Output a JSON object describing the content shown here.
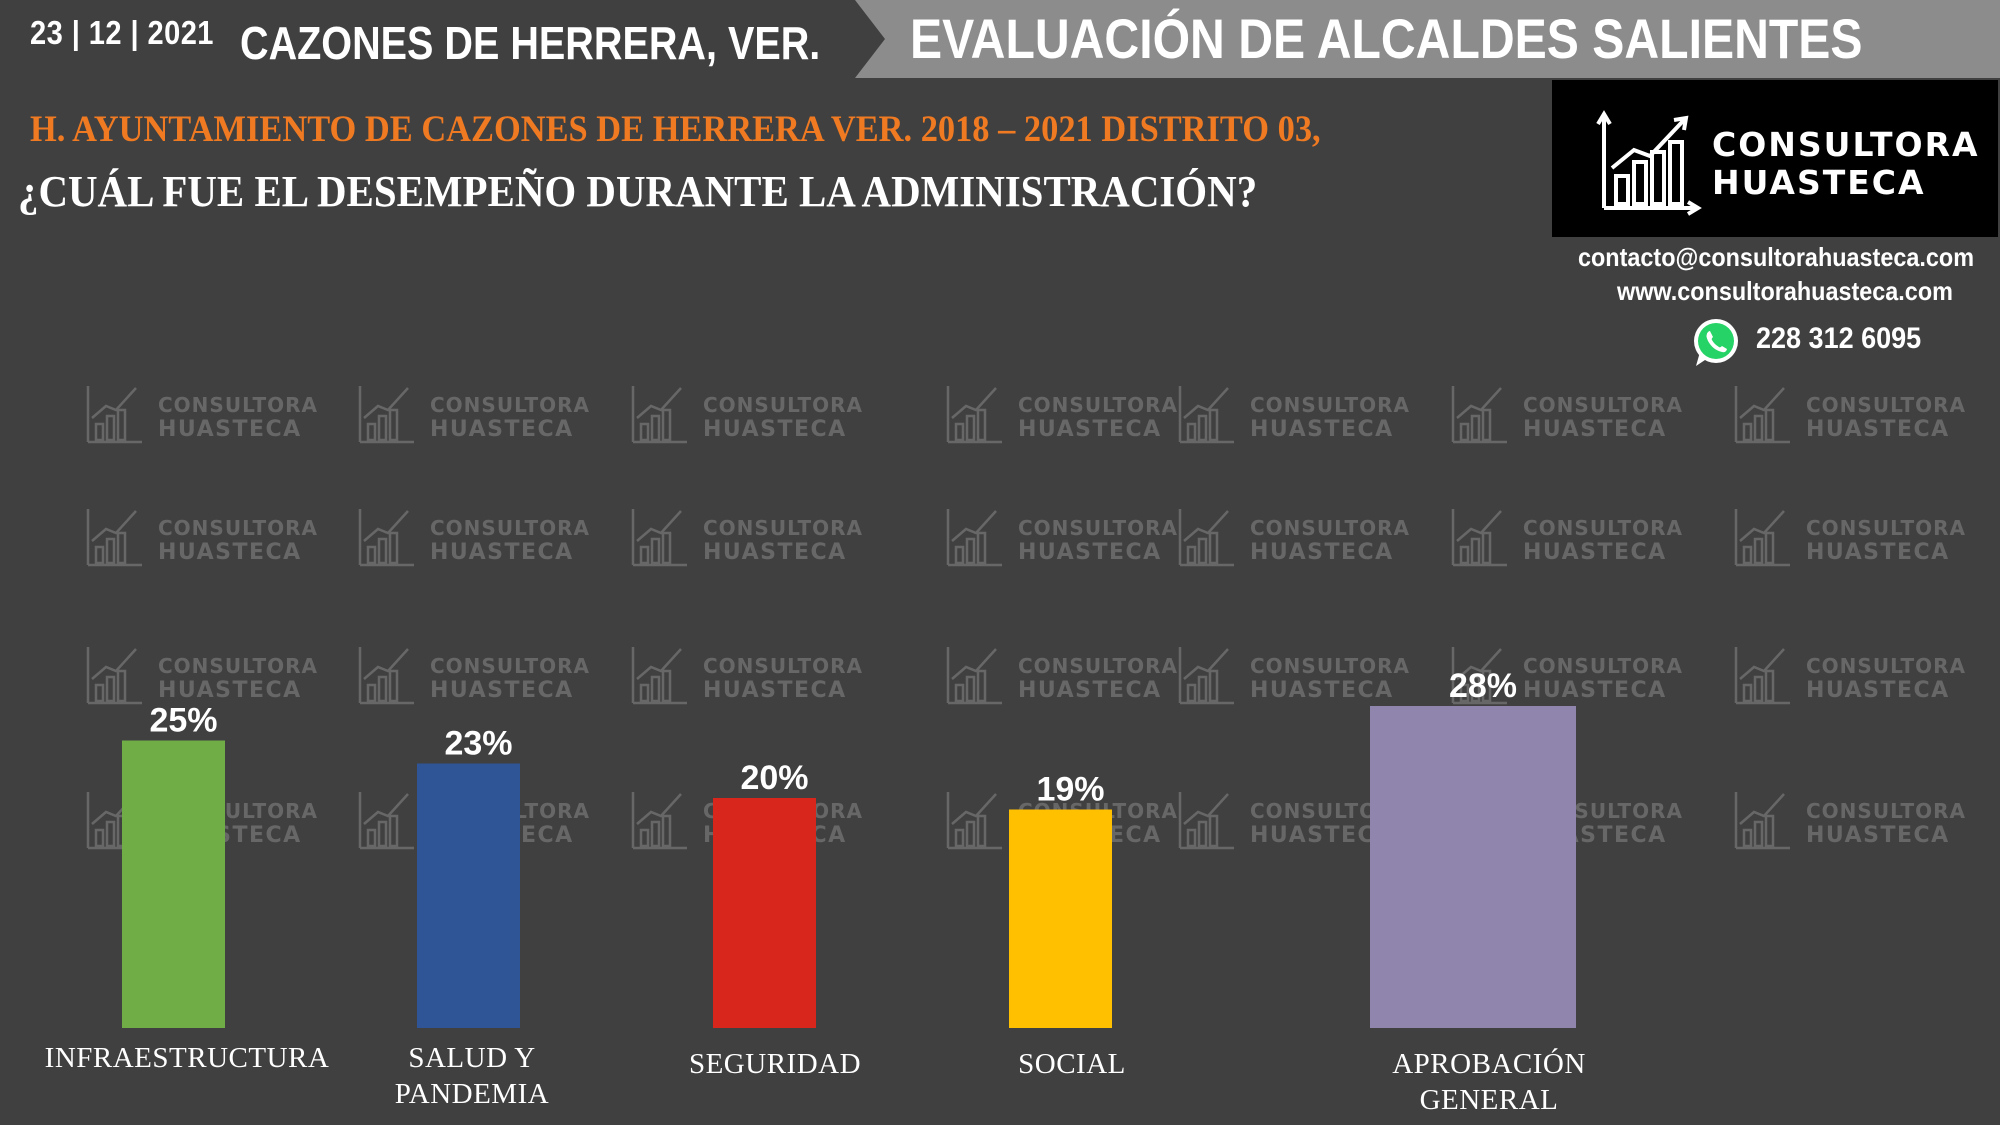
{
  "header": {
    "date": "23 | 12 | 2021",
    "place": "CAZONES DE HERRERA, VER.",
    "banner_title": "EVALUACIÓN DE ALCALDES SALIENTES",
    "banner_color": "#8c8c8c"
  },
  "subtitle": {
    "line1": "H. AYUNTAMIENTO DE CAZONES DE HERRERA VER. 2018 – 2021 DISTRITO 03,",
    "line2": "¿CUÁL FUE EL DESEMPEÑO DURANTE LA ADMINISTRACIÓN?",
    "line1_color": "#f07a22"
  },
  "logo": {
    "line1": "CONSULTORA",
    "line2": "HUASTECA",
    "icon": "bar-chart-growth-icon"
  },
  "contact": {
    "email": "contacto@consultorahuasteca.com",
    "web": "www.consultorahuasteca.com",
    "phone": "228 312 6095",
    "phone_icon": "whatsapp-icon"
  },
  "watermark": {
    "line1": "CONSULTORA",
    "line2": "HUASTECA"
  },
  "chart_data": {
    "type": "bar",
    "categories": [
      "INFRAESTRUCTURA",
      "SALUD Y PANDEMIA",
      "SEGURIDAD",
      "SOCIAL",
      "APROBACIÓN GENERAL"
    ],
    "category_lines": [
      [
        "INFRAESTRUCTURA"
      ],
      [
        "SALUD Y",
        "PANDEMIA"
      ],
      [
        "SEGURIDAD"
      ],
      [
        "SOCIAL"
      ],
      [
        "APROBACIÓN",
        "GENERAL"
      ]
    ],
    "values": [
      25,
      23,
      20,
      19,
      28
    ],
    "value_labels": [
      "25%",
      "23%",
      "20%",
      "19%",
      "28%"
    ],
    "colors": [
      "#70ad47",
      "#2f5597",
      "#d9261c",
      "#ffc000",
      "#8f85ad"
    ],
    "unit": "%",
    "ylim": [
      0,
      30
    ],
    "grid": false,
    "legend": "none"
  }
}
